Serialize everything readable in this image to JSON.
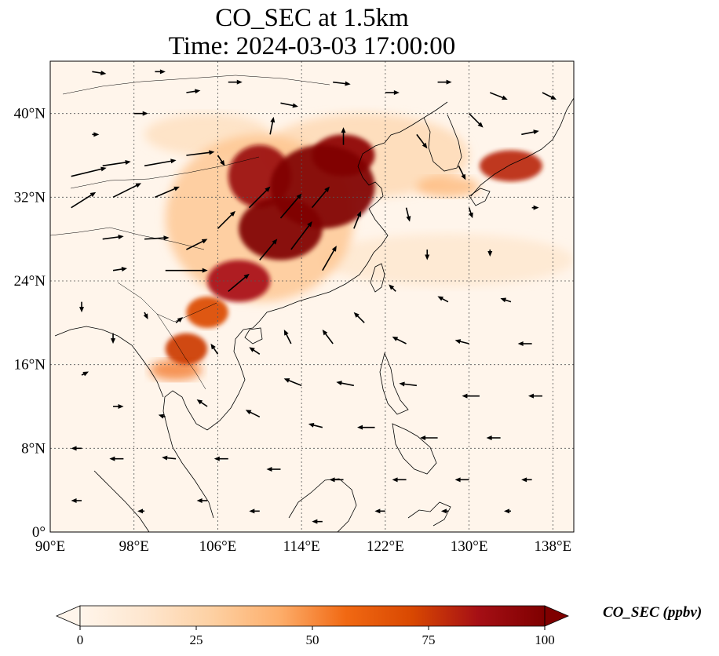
{
  "title": {
    "line1": "CO_SEC at 1.5km",
    "line2": "Time: 2024-03-03 17:00:00"
  },
  "map": {
    "lon_range": [
      90,
      140
    ],
    "lat_range": [
      0,
      45
    ],
    "lon_ticks": [
      {
        "value": 90,
        "label": "90°E"
      },
      {
        "value": 98,
        "label": "98°E"
      },
      {
        "value": 106,
        "label": "106°E"
      },
      {
        "value": 114,
        "label": "114°E"
      },
      {
        "value": 122,
        "label": "122°E"
      },
      {
        "value": 130,
        "label": "130°E"
      },
      {
        "value": 138,
        "label": "138°E"
      }
    ],
    "lat_ticks": [
      {
        "value": 0,
        "label": "0°"
      },
      {
        "value": 8,
        "label": "8°N"
      },
      {
        "value": 16,
        "label": "16°N"
      },
      {
        "value": 24,
        "label": "24°N"
      },
      {
        "value": 32,
        "label": "32°N"
      },
      {
        "value": 40,
        "label": "40°N"
      }
    ],
    "gridlines": true,
    "plume_regions": [
      {
        "lon": 116,
        "lat": 33,
        "rx": 5,
        "ry": 4,
        "value": 100
      },
      {
        "lon": 112,
        "lat": 29,
        "rx": 4,
        "ry": 3,
        "value": 100
      },
      {
        "lon": 110,
        "lat": 34,
        "rx": 3,
        "ry": 3,
        "value": 90
      },
      {
        "lon": 118,
        "lat": 36,
        "rx": 3,
        "ry": 2,
        "value": 95
      },
      {
        "lon": 108,
        "lat": 24,
        "rx": 3,
        "ry": 2,
        "value": 85
      },
      {
        "lon": 105,
        "lat": 21,
        "rx": 2,
        "ry": 1.5,
        "value": 70
      },
      {
        "lon": 103,
        "lat": 17.5,
        "rx": 2,
        "ry": 1.5,
        "value": 75
      },
      {
        "lon": 102,
        "lat": 15.5,
        "rx": 2.5,
        "ry": 1,
        "value": 55
      },
      {
        "lon": 134,
        "lat": 35,
        "rx": 3,
        "ry": 1.5,
        "value": 80
      },
      {
        "lon": 128,
        "lat": 33,
        "rx": 3,
        "ry": 1,
        "value": 40
      },
      {
        "lon": 110,
        "lat": 30,
        "rx": 9,
        "ry": 8,
        "value": 35
      },
      {
        "lon": 120,
        "lat": 36,
        "rx": 10,
        "ry": 4,
        "value": 25
      },
      {
        "lon": 128,
        "lat": 26,
        "rx": 12,
        "ry": 2.5,
        "value": 15
      },
      {
        "lon": 105,
        "lat": 38,
        "rx": 6,
        "ry": 2,
        "value": 20
      }
    ],
    "wind_vectors": [
      {
        "lon": 92,
        "lat": 34,
        "u": 5,
        "v": 1.2
      },
      {
        "lon": 95,
        "lat": 35,
        "u": 4,
        "v": 0.6
      },
      {
        "lon": 99,
        "lat": 35,
        "u": 4.5,
        "v": 0.8
      },
      {
        "lon": 103,
        "lat": 36,
        "u": 4,
        "v": 0.5
      },
      {
        "lon": 92,
        "lat": 31,
        "u": 3.5,
        "v": 2.2
      },
      {
        "lon": 96,
        "lat": 32,
        "u": 4,
        "v": 2
      },
      {
        "lon": 100,
        "lat": 32,
        "u": 3.5,
        "v": 1.5
      },
      {
        "lon": 95,
        "lat": 28,
        "u": 3,
        "v": 0.4
      },
      {
        "lon": 99,
        "lat": 28,
        "u": 3.5,
        "v": 0.2
      },
      {
        "lon": 103,
        "lat": 27,
        "u": 3,
        "v": 1.5
      },
      {
        "lon": 101,
        "lat": 25,
        "u": 6,
        "v": 0
      },
      {
        "lon": 96,
        "lat": 25,
        "u": 2,
        "v": 0.3
      },
      {
        "lon": 106,
        "lat": 29,
        "u": 2.5,
        "v": 2.5
      },
      {
        "lon": 109,
        "lat": 31,
        "u": 3,
        "v": 3
      },
      {
        "lon": 112,
        "lat": 30,
        "u": 3,
        "v": 3.5
      },
      {
        "lon": 115,
        "lat": 31,
        "u": 2.5,
        "v": 3
      },
      {
        "lon": 113,
        "lat": 27,
        "u": 3,
        "v": 4
      },
      {
        "lon": 110,
        "lat": 26,
        "u": 2.5,
        "v": 3
      },
      {
        "lon": 107,
        "lat": 23,
        "u": 3,
        "v": 2.5
      },
      {
        "lon": 116,
        "lat": 25,
        "u": 2,
        "v": 3.5
      },
      {
        "lon": 119,
        "lat": 29,
        "u": 1,
        "v": 2.5
      },
      {
        "lon": 118,
        "lat": 37,
        "u": 0,
        "v": 2.5
      },
      {
        "lon": 111,
        "lat": 38,
        "u": 0.5,
        "v": 2.5
      },
      {
        "lon": 106,
        "lat": 36,
        "u": 1,
        "v": -1.5
      },
      {
        "lon": 98,
        "lat": 40,
        "u": 2,
        "v": 0
      },
      {
        "lon": 103,
        "lat": 42,
        "u": 2,
        "v": 0.3
      },
      {
        "lon": 107,
        "lat": 43,
        "u": 2,
        "v": 0
      },
      {
        "lon": 112,
        "lat": 41,
        "u": 2.5,
        "v": -0.5
      },
      {
        "lon": 117,
        "lat": 43,
        "u": 2.5,
        "v": -0.3
      },
      {
        "lon": 122,
        "lat": 42,
        "u": 2,
        "v": 0
      },
      {
        "lon": 127,
        "lat": 43,
        "u": 2,
        "v": 0
      },
      {
        "lon": 132,
        "lat": 42,
        "u": 2.5,
        "v": -1
      },
      {
        "lon": 137,
        "lat": 42,
        "u": 2,
        "v": -1
      },
      {
        "lon": 130,
        "lat": 40,
        "u": 2,
        "v": -2
      },
      {
        "lon": 135,
        "lat": 38,
        "u": 2.5,
        "v": 0.5
      },
      {
        "lon": 125,
        "lat": 38,
        "u": 1.5,
        "v": -2
      },
      {
        "lon": 129,
        "lat": 35,
        "u": 1,
        "v": -2
      },
      {
        "lon": 124,
        "lat": 31,
        "u": 0.5,
        "v": -2
      },
      {
        "lon": 130,
        "lat": 31,
        "u": 0.5,
        "v": -1.5
      },
      {
        "lon": 136,
        "lat": 31,
        "u": 1,
        "v": 0
      },
      {
        "lon": 126,
        "lat": 27,
        "u": 0,
        "v": -1.5
      },
      {
        "lon": 132,
        "lat": 27,
        "u": 0,
        "v": -1
      },
      {
        "lon": 123,
        "lat": 23,
        "u": -1,
        "v": 1
      },
      {
        "lon": 128,
        "lat": 22,
        "u": -1.5,
        "v": 0.8
      },
      {
        "lon": 134,
        "lat": 22,
        "u": -1.5,
        "v": 0.5
      },
      {
        "lon": 120,
        "lat": 20,
        "u": -1.5,
        "v": 1.5
      },
      {
        "lon": 117,
        "lat": 18,
        "u": -1.5,
        "v": 2
      },
      {
        "lon": 113,
        "lat": 18,
        "u": -1,
        "v": 2
      },
      {
        "lon": 110,
        "lat": 17,
        "u": -1.5,
        "v": 1
      },
      {
        "lon": 124,
        "lat": 18,
        "u": -2,
        "v": 1
      },
      {
        "lon": 130,
        "lat": 18,
        "u": -2,
        "v": 0.5
      },
      {
        "lon": 136,
        "lat": 18,
        "u": -2,
        "v": 0
      },
      {
        "lon": 114,
        "lat": 14,
        "u": -2.5,
        "v": 1
      },
      {
        "lon": 119,
        "lat": 14,
        "u": -2.5,
        "v": 0.5
      },
      {
        "lon": 125,
        "lat": 14,
        "u": -2.5,
        "v": 0.3
      },
      {
        "lon": 131,
        "lat": 13,
        "u": -2.5,
        "v": 0
      },
      {
        "lon": 137,
        "lat": 13,
        "u": -2,
        "v": 0
      },
      {
        "lon": 110,
        "lat": 11,
        "u": -2,
        "v": 1
      },
      {
        "lon": 116,
        "lat": 10,
        "u": -2,
        "v": 0.5
      },
      {
        "lon": 121,
        "lat": 10,
        "u": -2.5,
        "v": 0
      },
      {
        "lon": 127,
        "lat": 9,
        "u": -2.5,
        "v": 0
      },
      {
        "lon": 133,
        "lat": 9,
        "u": -2,
        "v": 0
      },
      {
        "lon": 105,
        "lat": 12,
        "u": -1.5,
        "v": 1
      },
      {
        "lon": 101,
        "lat": 11,
        "u": -1,
        "v": 0.3
      },
      {
        "lon": 96,
        "lat": 12,
        "u": 1.5,
        "v": 0
      },
      {
        "lon": 93,
        "lat": 15,
        "u": 1,
        "v": 0.5
      },
      {
        "lon": 93,
        "lat": 8,
        "u": -1.5,
        "v": 0
      },
      {
        "lon": 97,
        "lat": 7,
        "u": -2,
        "v": 0
      },
      {
        "lon": 102,
        "lat": 7,
        "u": -2,
        "v": 0.2
      },
      {
        "lon": 107,
        "lat": 7,
        "u": -2,
        "v": 0
      },
      {
        "lon": 112,
        "lat": 6,
        "u": -2,
        "v": 0
      },
      {
        "lon": 118,
        "lat": 5,
        "u": -2,
        "v": 0
      },
      {
        "lon": 124,
        "lat": 5,
        "u": -2,
        "v": 0
      },
      {
        "lon": 130,
        "lat": 5,
        "u": -2,
        "v": 0
      },
      {
        "lon": 136,
        "lat": 5,
        "u": -1.5,
        "v": 0
      },
      {
        "lon": 93,
        "lat": 3,
        "u": -1.5,
        "v": 0
      },
      {
        "lon": 99,
        "lat": 2,
        "u": -1,
        "v": 0
      },
      {
        "lon": 105,
        "lat": 3,
        "u": -1.5,
        "v": 0
      },
      {
        "lon": 110,
        "lat": 2,
        "u": -1.5,
        "v": 0
      },
      {
        "lon": 116,
        "lat": 1,
        "u": -1.5,
        "v": 0
      },
      {
        "lon": 122,
        "lat": 2,
        "u": -1.5,
        "v": 0
      },
      {
        "lon": 128,
        "lat": 2,
        "u": -1,
        "v": 0
      },
      {
        "lon": 134,
        "lat": 2,
        "u": -1,
        "v": 0
      },
      {
        "lon": 96,
        "lat": 19,
        "u": 0,
        "v": -1.5
      },
      {
        "lon": 99,
        "lat": 21,
        "u": 0.5,
        "v": -1
      },
      {
        "lon": 102,
        "lat": 20,
        "u": 1,
        "v": 0.8
      },
      {
        "lon": 93,
        "lat": 22,
        "u": 0,
        "v": -1.5
      },
      {
        "lon": 106,
        "lat": 17,
        "u": -1,
        "v": 1.5
      },
      {
        "lon": 94,
        "lat": 38,
        "u": 1,
        "v": 0
      },
      {
        "lon": 100,
        "lat": 44,
        "u": 1.5,
        "v": 0
      },
      {
        "lon": 94,
        "lat": 44,
        "u": 2,
        "v": -0.3
      }
    ]
  },
  "colorbar": {
    "label": "CO_SEC (ppbv)",
    "min": 0,
    "max": 100,
    "extend": "both",
    "colors": [
      "#fff5eb",
      "#fee6ce",
      "#fdd0a2",
      "#fdae6b",
      "#f16913",
      "#d94801",
      "#a50f15",
      "#7f0000"
    ],
    "ticks": [
      {
        "value": 0,
        "label": "0"
      },
      {
        "value": 25,
        "label": "25"
      },
      {
        "value": 50,
        "label": "50"
      },
      {
        "value": 75,
        "label": "75"
      },
      {
        "value": 100,
        "label": "100"
      }
    ]
  }
}
